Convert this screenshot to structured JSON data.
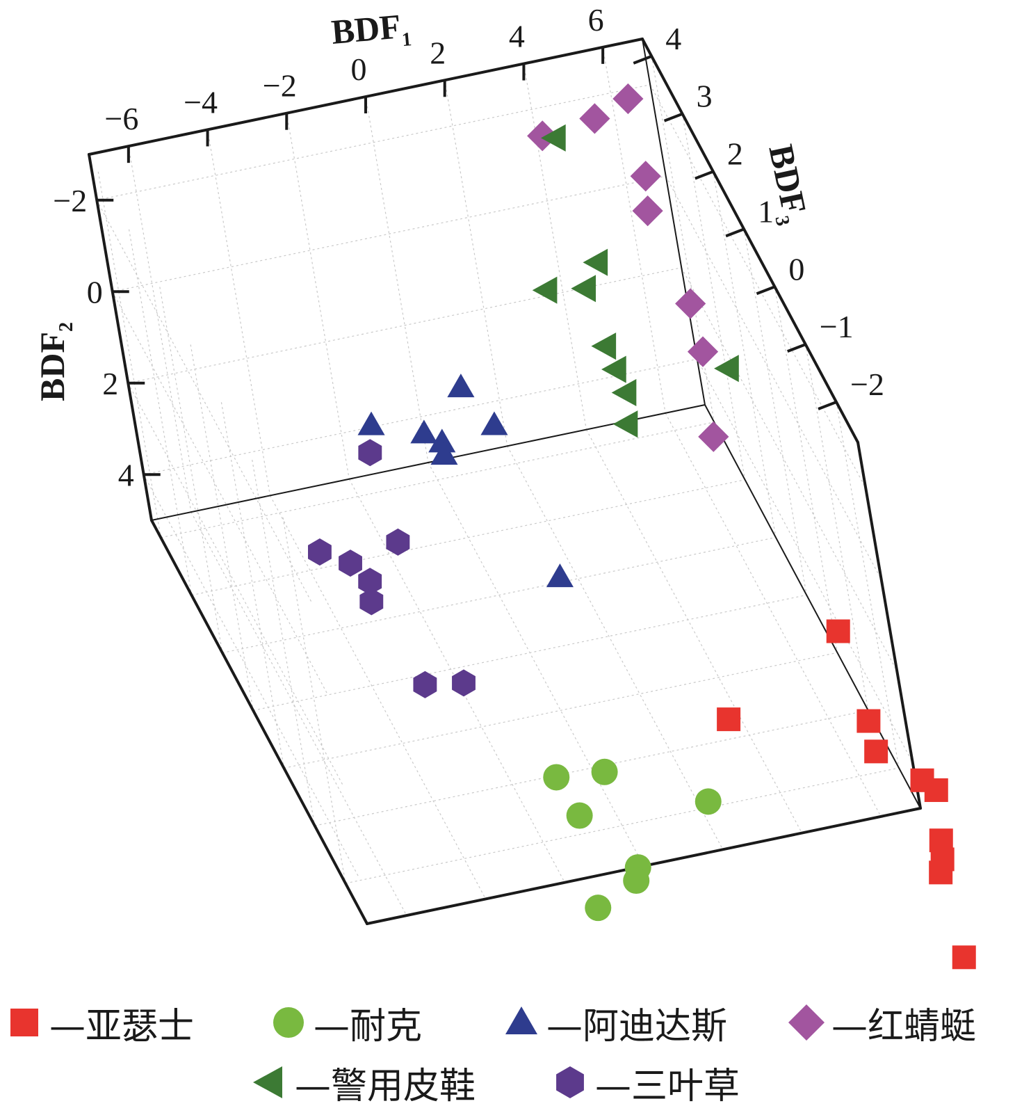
{
  "chart_data": {
    "type": "scatter",
    "projection": "3d",
    "axes": {
      "x": {
        "title": "BDF",
        "subscript": "1",
        "ticks": [
          "−6",
          "−4",
          "−2",
          "0",
          "2",
          "4",
          "6"
        ]
      },
      "y": {
        "title": "BDF",
        "subscript": "2",
        "ticks": [
          "−2",
          "0",
          "2",
          "4"
        ]
      },
      "z": {
        "title": "BDF",
        "subscript": "3",
        "ticks": [
          "4",
          "3",
          "2",
          "1",
          "0",
          "−1",
          "−2"
        ]
      }
    },
    "grid": true,
    "legend_position": "bottom",
    "series": [
      {
        "name": "—亚瑟士",
        "marker": "square",
        "color": "#e8342e",
        "points": [
          [
            6.6,
            3.2,
            -1.0
          ],
          [
            3.3,
            3.9,
            -1.5
          ],
          [
            6.2,
            3.2,
            -2.5
          ],
          [
            6.0,
            3.2,
            -3.0
          ],
          [
            6.7,
            3.2,
            -3.6
          ],
          [
            6.9,
            3.2,
            -3.8
          ],
          [
            6.4,
            3.2,
            -4.6
          ],
          [
            6.2,
            3.2,
            -4.9
          ],
          [
            6.0,
            3.2,
            -5.1
          ],
          [
            5.5,
            3.2,
            -6.5
          ]
        ]
      },
      {
        "name": "—耐克",
        "marker": "circle",
        "color": "#79b940",
        "points": [
          [
            -1.1,
            4.5,
            -1.4
          ],
          [
            0.1,
            4.6,
            -1.4
          ],
          [
            -1.0,
            4.6,
            -2.0
          ],
          [
            2.1,
            4.6,
            -2.2
          ],
          [
            -0.3,
            4.6,
            -3.0
          ],
          [
            -0.5,
            4.6,
            -3.2
          ],
          [
            -1.7,
            4.6,
            -3.5
          ]
        ]
      },
      {
        "name": "—阿迪达斯",
        "marker": "triangle",
        "color": "#2e3c8e",
        "points": [
          [
            0.6,
            2.2,
            3.3
          ],
          [
            -1.9,
            2.2,
            3.0
          ],
          [
            0.9,
            2.2,
            2.6
          ],
          [
            -0.8,
            2.2,
            2.7
          ],
          [
            -0.5,
            2.2,
            2.5
          ],
          [
            -0.6,
            2.2,
            2.3
          ],
          [
            1.0,
            3.4,
            0.9
          ]
        ]
      },
      {
        "name": "—红蜻蜓",
        "marker": "diamond",
        "color": "#a2559f",
        "points": [
          [
            4.0,
            -1.8,
            4.0
          ],
          [
            5.4,
            -1.8,
            4.1
          ],
          [
            6.4,
            -1.8,
            4.3
          ],
          [
            6.2,
            -0.9,
            3.7
          ],
          [
            5.9,
            -0.7,
            3.3
          ],
          [
            6.2,
            0.5,
            2.6
          ],
          [
            6.2,
            1.3,
            2.4
          ],
          [
            5.9,
            2.6,
            2.0
          ]
        ]
      },
      {
        "name": "—警用皮鞋",
        "marker": "triangle-left",
        "color": "#3c7a34",
        "points": [
          [
            4.3,
            -1.7,
            4.0
          ],
          [
            4.5,
            0.3,
            3.4
          ],
          [
            3.2,
            0.8,
            3.5
          ],
          [
            4.1,
            0.8,
            3.4
          ],
          [
            4.2,
            1.7,
            3.1
          ],
          [
            4.3,
            2.1,
            3.0
          ],
          [
            4.4,
            2.5,
            2.9
          ],
          [
            4.2,
            2.9,
            2.7
          ],
          [
            6.8,
            1.9,
            2.5
          ]
        ]
      },
      {
        "name": "—三叶草",
        "marker": "hexagon",
        "color": "#5c3a8c",
        "points": [
          [
            -2.3,
            2.1,
            2.5
          ],
          [
            -2.3,
            3.3,
            1.9
          ],
          [
            -4.2,
            3.3,
            2.0
          ],
          [
            -3.6,
            3.4,
            1.8
          ],
          [
            -3.3,
            3.6,
            1.6
          ],
          [
            -3.4,
            3.9,
            1.5
          ],
          [
            -3.0,
            4.4,
            0.4
          ],
          [
            -2.1,
            4.4,
            0.3
          ]
        ]
      }
    ]
  }
}
